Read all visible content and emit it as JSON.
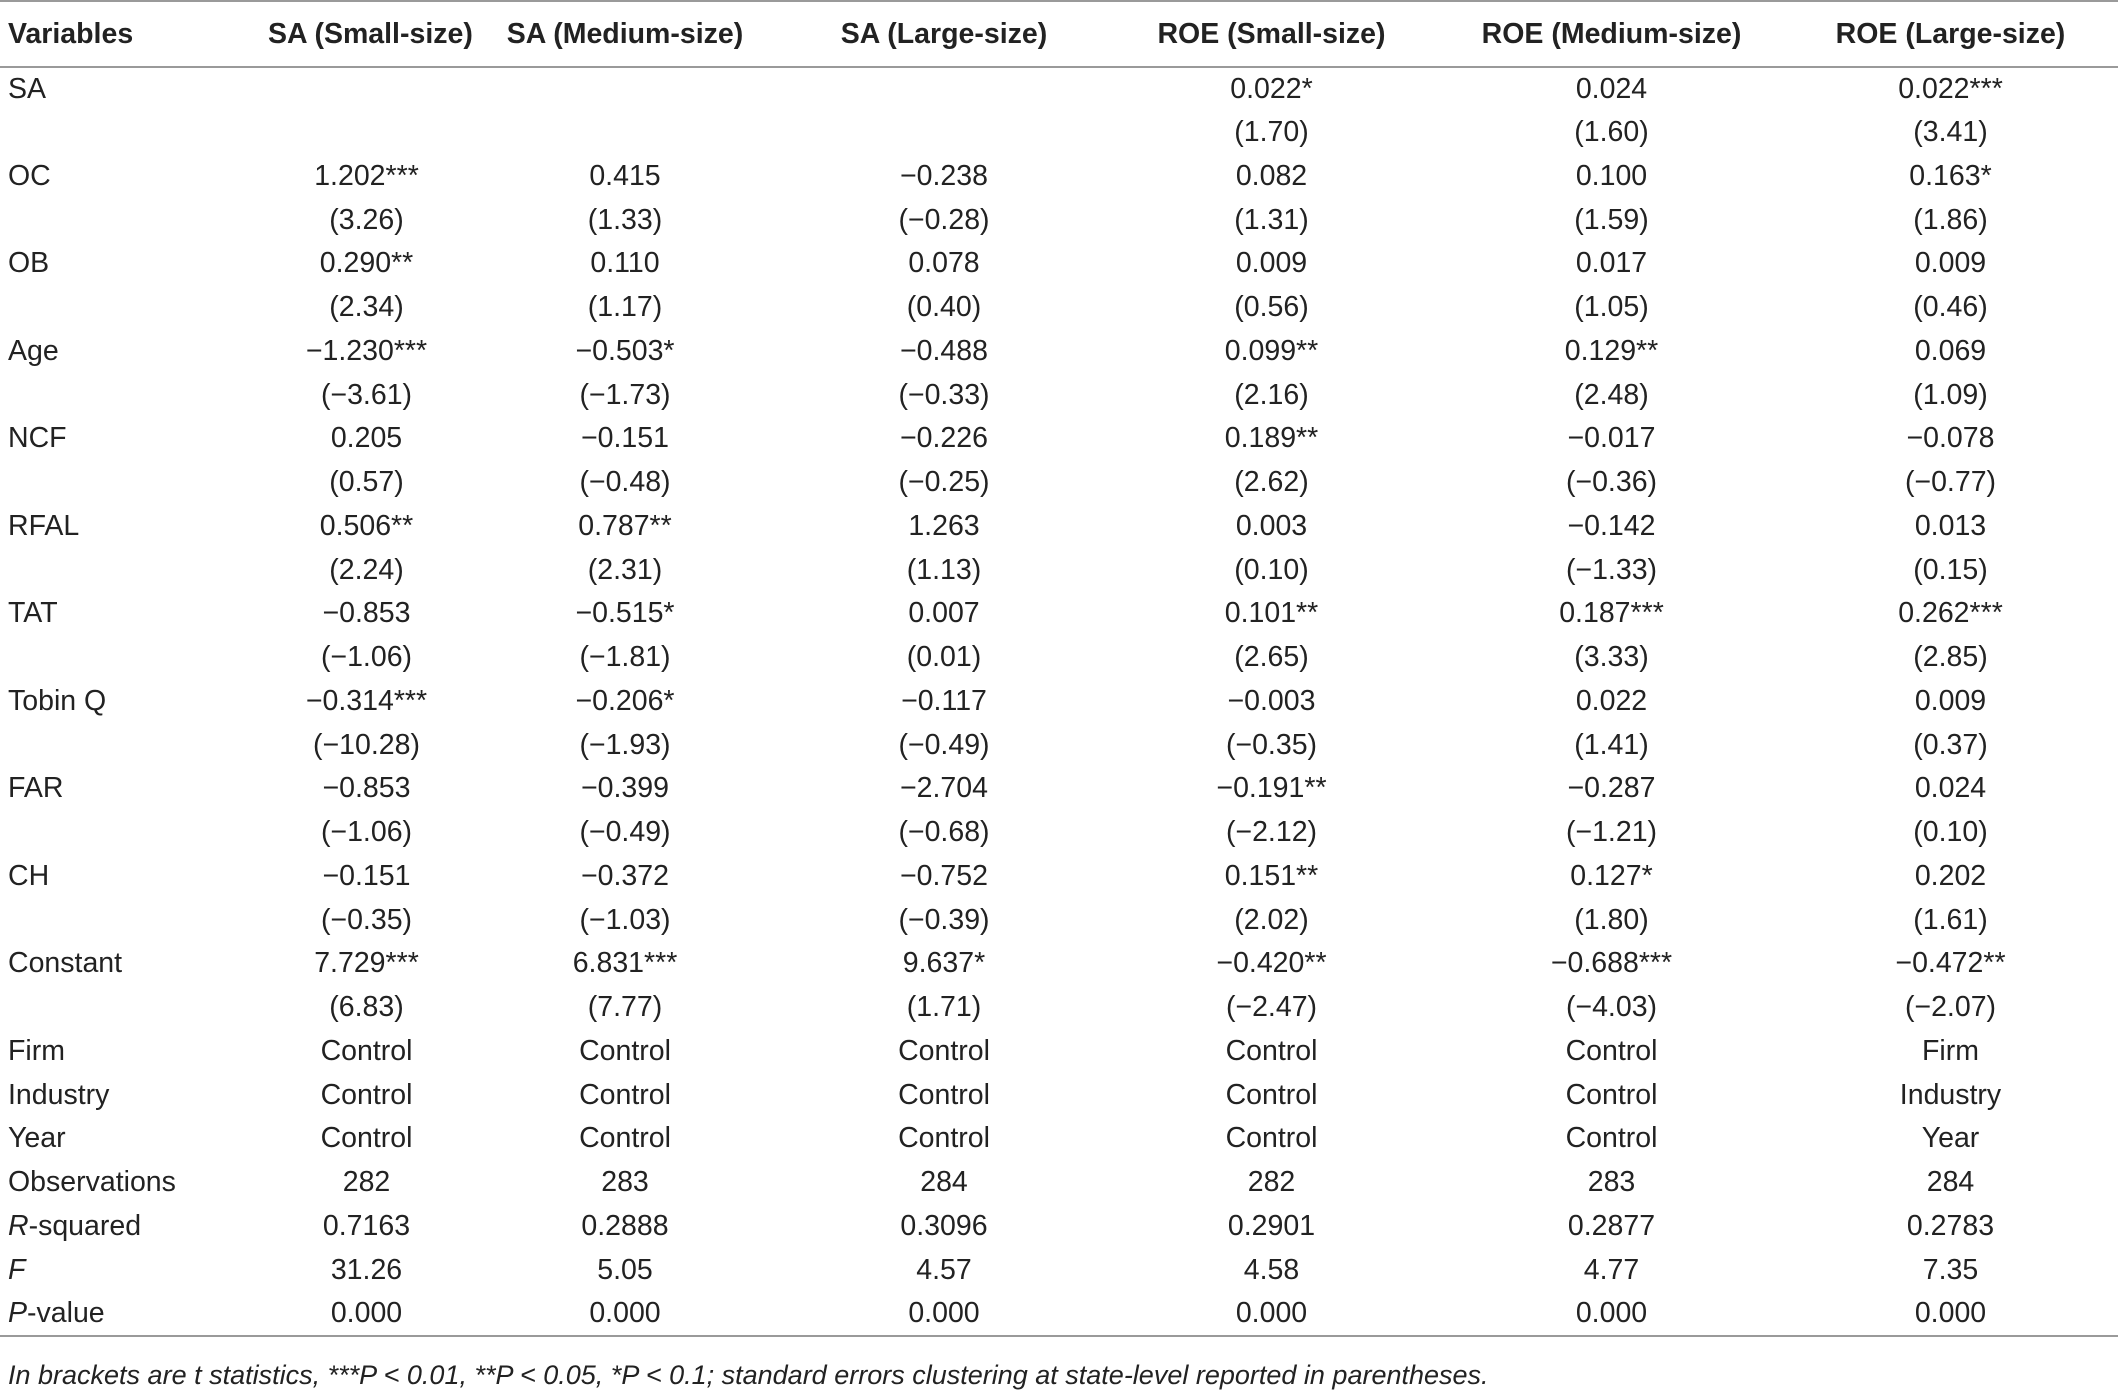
{
  "table": {
    "headers": [
      "Variables",
      "SA (Small-size)",
      "SA (Medium-size)",
      "SA (Large-size)",
      "ROE (Small-size)",
      "ROE (Medium-size)",
      "ROE (Large-size)"
    ],
    "rows": [
      {
        "label": "SA",
        "cells": [
          "",
          "",
          "",
          "0.022*",
          "0.024",
          "0.022***"
        ]
      },
      {
        "label": "",
        "cells": [
          "",
          "",
          "",
          "(1.70)",
          "(1.60)",
          "(3.41)"
        ]
      },
      {
        "label": "OC",
        "cells": [
          "1.202***",
          "0.415",
          "−0.238",
          "0.082",
          "0.100",
          "0.163*"
        ]
      },
      {
        "label": "",
        "cells": [
          "(3.26)",
          "(1.33)",
          "(−0.28)",
          "(1.31)",
          "(1.59)",
          "(1.86)"
        ]
      },
      {
        "label": "OB",
        "cells": [
          "0.290**",
          "0.110",
          "0.078",
          "0.009",
          "0.017",
          "0.009"
        ]
      },
      {
        "label": "",
        "cells": [
          "(2.34)",
          "(1.17)",
          "(0.40)",
          "(0.56)",
          "(1.05)",
          "(0.46)"
        ]
      },
      {
        "label": "Age",
        "cells": [
          "−1.230***",
          "−0.503*",
          "−0.488",
          "0.099**",
          "0.129**",
          "0.069"
        ]
      },
      {
        "label": "",
        "cells": [
          "(−3.61)",
          "(−1.73)",
          "(−0.33)",
          "(2.16)",
          "(2.48)",
          "(1.09)"
        ]
      },
      {
        "label": "NCF",
        "cells": [
          "0.205",
          "−0.151",
          "−0.226",
          "0.189**",
          "−0.017",
          "−0.078"
        ]
      },
      {
        "label": "",
        "cells": [
          "(0.57)",
          "(−0.48)",
          "(−0.25)",
          "(2.62)",
          "(−0.36)",
          "(−0.77)"
        ]
      },
      {
        "label": "RFAL",
        "cells": [
          "0.506**",
          "0.787**",
          "1.263",
          "0.003",
          "−0.142",
          "0.013"
        ]
      },
      {
        "label": "",
        "cells": [
          "(2.24)",
          "(2.31)",
          "(1.13)",
          "(0.10)",
          "(−1.33)",
          "(0.15)"
        ]
      },
      {
        "label": "TAT",
        "cells": [
          "−0.853",
          "−0.515*",
          "0.007",
          "0.101**",
          "0.187***",
          "0.262***"
        ]
      },
      {
        "label": "",
        "cells": [
          "(−1.06)",
          "(−1.81)",
          "(0.01)",
          "(2.65)",
          "(3.33)",
          "(2.85)"
        ]
      },
      {
        "label": "Tobin Q",
        "cells": [
          "−0.314***",
          "−0.206*",
          "−0.117",
          "−0.003",
          "0.022",
          "0.009"
        ]
      },
      {
        "label": "",
        "cells": [
          "(−10.28)",
          "(−1.93)",
          "(−0.49)",
          "(−0.35)",
          "(1.41)",
          "(0.37)"
        ]
      },
      {
        "label": "FAR",
        "cells": [
          "−0.853",
          "−0.399",
          "−2.704",
          "−0.191**",
          "−0.287",
          "0.024"
        ]
      },
      {
        "label": "",
        "cells": [
          "(−1.06)",
          "(−0.49)",
          "(−0.68)",
          "(−2.12)",
          "(−1.21)",
          "(0.10)"
        ]
      },
      {
        "label": "CH",
        "cells": [
          "−0.151",
          "−0.372",
          "−0.752",
          "0.151**",
          "0.127*",
          "0.202"
        ]
      },
      {
        "label": "",
        "cells": [
          "(−0.35)",
          "(−1.03)",
          "(−0.39)",
          "(2.02)",
          "(1.80)",
          "(1.61)"
        ]
      },
      {
        "label": "Constant",
        "cells": [
          "7.729***",
          "6.831***",
          "9.637*",
          "−0.420**",
          "−0.688***",
          "−0.472**"
        ]
      },
      {
        "label": "",
        "cells": [
          "(6.83)",
          "(7.77)",
          "(1.71)",
          "(−2.47)",
          "(−4.03)",
          "(−2.07)"
        ]
      },
      {
        "label": "Firm",
        "cells": [
          "Control",
          "Control",
          "Control",
          "Control",
          "Control",
          "Firm"
        ]
      },
      {
        "label": "Industry",
        "cells": [
          "Control",
          "Control",
          "Control",
          "Control",
          "Control",
          "Industry"
        ]
      },
      {
        "label": "Year",
        "cells": [
          "Control",
          "Control",
          "Control",
          "Control",
          "Control",
          "Year"
        ]
      },
      {
        "label": "Observations",
        "cells": [
          "282",
          "283",
          "284",
          "282",
          "283",
          "284"
        ]
      },
      {
        "label_italic": "R",
        "label_rest": "-squared",
        "cells": [
          "0.7163",
          "0.2888",
          "0.3096",
          "0.2901",
          "0.2877",
          "0.2783"
        ]
      },
      {
        "label_italic": "F",
        "label_rest": "",
        "cells": [
          "31.26",
          "5.05",
          "4.57",
          "4.58",
          "4.77",
          "7.35"
        ]
      },
      {
        "label_italic": "P",
        "label_rest": "-value",
        "cells": [
          "0.000",
          "0.000",
          "0.000",
          "0.000",
          "0.000",
          "0.000"
        ]
      }
    ]
  },
  "footnote": "In brackets are t statistics, ***P < 0.01, **P < 0.05, *P < 0.1; standard errors clustering at state-level reported in parentheses."
}
